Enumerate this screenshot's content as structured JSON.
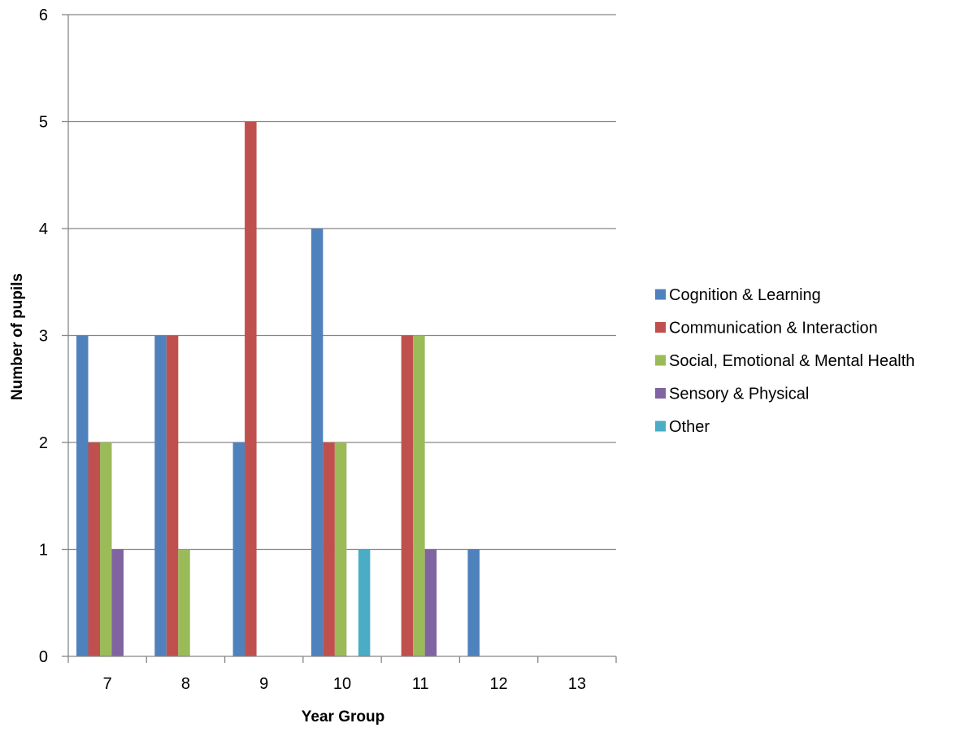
{
  "chart_data": {
    "type": "bar",
    "title": "",
    "xlabel": "Year Group",
    "ylabel": "Number of pupils",
    "categories": [
      "7",
      "8",
      "9",
      "10",
      "11",
      "12",
      "13"
    ],
    "ylim": [
      0,
      6
    ],
    "yticks": [
      "0",
      "1",
      "2",
      "3",
      "4",
      "5",
      "6"
    ],
    "grid": "horizontal",
    "legend_position": "right",
    "series": [
      {
        "name": "Cognition & Learning",
        "color": "#4F81BD",
        "values": [
          3,
          3,
          2,
          4,
          0,
          1,
          0
        ]
      },
      {
        "name": "Communication & Interaction",
        "color": "#C0504D",
        "values": [
          2,
          3,
          5,
          2,
          3,
          0,
          0
        ]
      },
      {
        "name": "Social, Emotional & Mental Health",
        "color": "#9BBB59",
        "values": [
          2,
          1,
          0,
          2,
          3,
          0,
          0
        ]
      },
      {
        "name": "Sensory & Physical",
        "color": "#8064A2",
        "values": [
          1,
          0,
          0,
          0,
          1,
          0,
          0
        ]
      },
      {
        "name": "Other",
        "color": "#4BACC6",
        "values": [
          0,
          0,
          0,
          1,
          0,
          0,
          0
        ]
      }
    ]
  }
}
